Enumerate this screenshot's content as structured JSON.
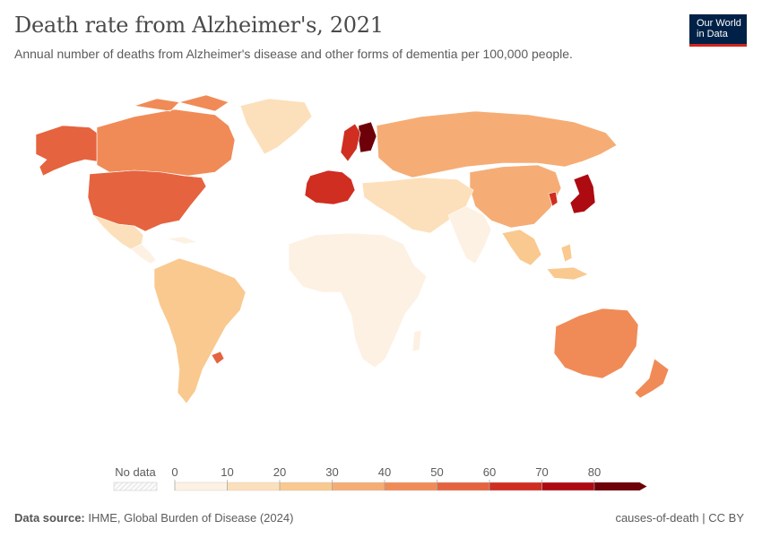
{
  "header": {
    "title": "Death rate from Alzheimer's, 2021",
    "subtitle": "Annual number of deaths from Alzheimer's disease and other forms of dementia per 100,000 people.",
    "logo_line1": "Our World",
    "logo_line2": "in Data"
  },
  "legend": {
    "no_data_label": "No data",
    "ticks": [
      "0",
      "10",
      "20",
      "30",
      "40",
      "50",
      "60",
      "70",
      "80"
    ],
    "bins": [
      {
        "from": 0,
        "to": 10,
        "color": "#fdf1e3"
      },
      {
        "from": 10,
        "to": 20,
        "color": "#fce0bb"
      },
      {
        "from": 20,
        "to": 30,
        "color": "#f9c98f"
      },
      {
        "from": 30,
        "to": 40,
        "color": "#f5ad75"
      },
      {
        "from": 40,
        "to": 50,
        "color": "#f08b57"
      },
      {
        "from": 50,
        "to": 60,
        "color": "#e5633f"
      },
      {
        "from": 60,
        "to": 70,
        "color": "#cf2e21"
      },
      {
        "from": 70,
        "to": 80,
        "color": "#ad0a12"
      },
      {
        "from": 80,
        "to": null,
        "color": "#6e0009"
      }
    ]
  },
  "footer": {
    "source_label": "Data source:",
    "source_text": "IHME, Global Burden of Disease (2024)",
    "right_text": "causes-of-death | CC BY"
  },
  "colors": {
    "no_data": "#f3f3f3",
    "border": "#ffffff"
  },
  "chart_data": {
    "type": "choropleth",
    "title": "Death rate from Alzheimer's, 2021",
    "unit": "deaths per 100,000 people",
    "bins": [
      0,
      10,
      20,
      30,
      40,
      50,
      60,
      70,
      80
    ],
    "regions": [
      {
        "name": "Canada",
        "bin": "40-50"
      },
      {
        "name": "Alaska",
        "bin": "50-60"
      },
      {
        "name": "Greenland",
        "bin": "10-20"
      },
      {
        "name": "United States",
        "bin": "50-60"
      },
      {
        "name": "Mexico",
        "bin": "10-20"
      },
      {
        "name": "Central America & Caribbean",
        "bin": "0-10"
      },
      {
        "name": "South America",
        "bin": "20-30"
      },
      {
        "name": "Uruguay",
        "bin": "50-60"
      },
      {
        "name": "Western Europe",
        "bin": "60-80"
      },
      {
        "name": "Finland",
        "bin": "80+"
      },
      {
        "name": "Sweden",
        "bin": "60-70"
      },
      {
        "name": "Russia",
        "bin": "30-40"
      },
      {
        "name": "China",
        "bin": "30-40"
      },
      {
        "name": "Japan",
        "bin": "70-80"
      },
      {
        "name": "South Korea",
        "bin": "60-70"
      },
      {
        "name": "Australia",
        "bin": "40-50"
      },
      {
        "name": "New Zealand",
        "bin": "40-50"
      },
      {
        "name": "Africa",
        "bin": "0-10"
      },
      {
        "name": "Middle East & Central Asia",
        "bin": "0-20"
      },
      {
        "name": "India & South Asia",
        "bin": "0-10"
      },
      {
        "name": "Southeast Asia",
        "bin": "10-30"
      }
    ]
  }
}
